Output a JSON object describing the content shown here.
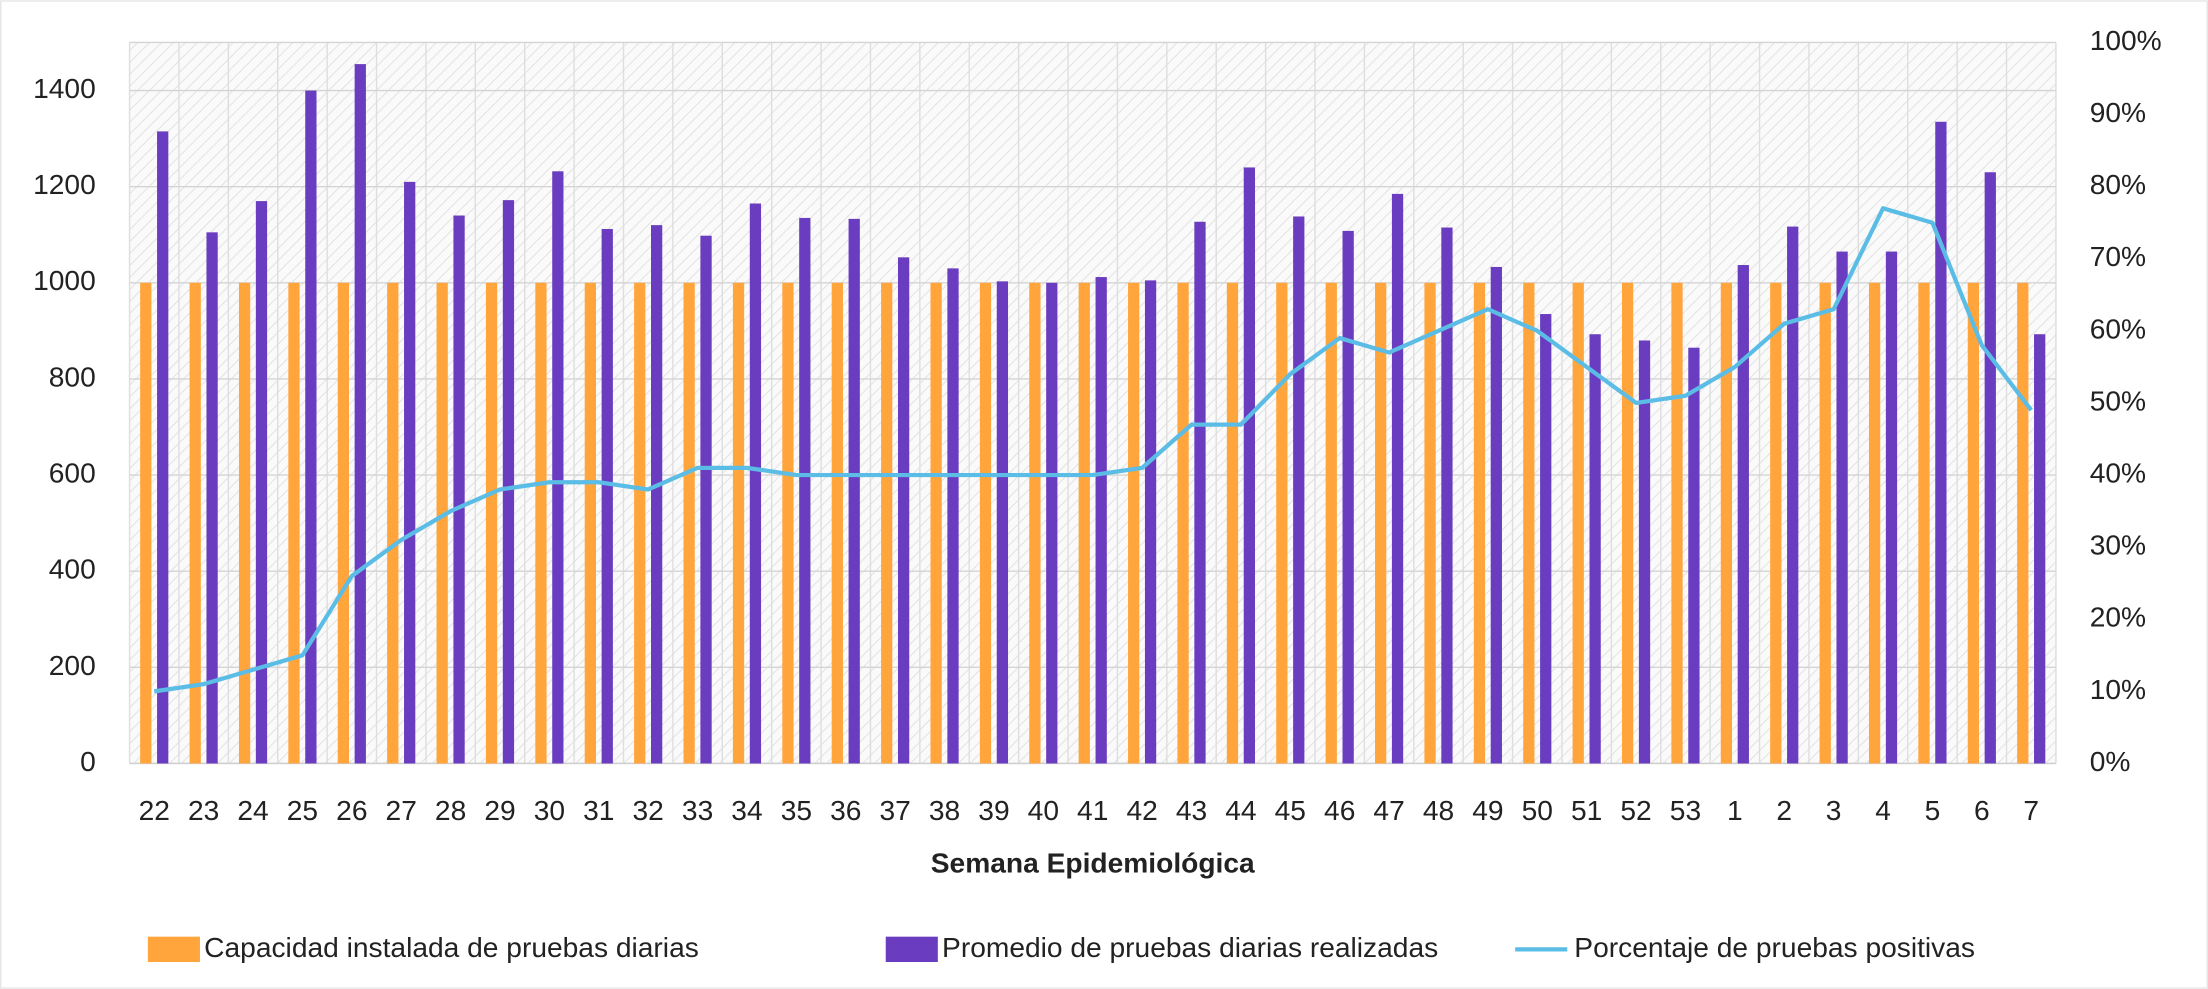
{
  "chart_data": {
    "type": "bar-line",
    "x_label": "Semana Epidemiológica",
    "categories": [
      "22",
      "23",
      "24",
      "25",
      "26",
      "27",
      "28",
      "29",
      "30",
      "31",
      "32",
      "33",
      "34",
      "35",
      "36",
      "37",
      "38",
      "39",
      "40",
      "41",
      "42",
      "43",
      "44",
      "45",
      "46",
      "47",
      "48",
      "49",
      "50",
      "51",
      "52",
      "53",
      "1",
      "2",
      "3",
      "4",
      "5",
      "6",
      "7"
    ],
    "series": [
      {
        "name": "Capacidad instalada de pruebas diarias",
        "type": "bar",
        "color": "#ffa53b",
        "values": [
          1000,
          1000,
          1000,
          1000,
          1000,
          1000,
          1000,
          1000,
          1000,
          1000,
          1000,
          1000,
          1000,
          1000,
          1000,
          1000,
          1000,
          1000,
          1000,
          1000,
          1000,
          1000,
          1000,
          1000,
          1000,
          1000,
          1000,
          1000,
          1000,
          1000,
          1000,
          1000,
          1000,
          1000,
          1000,
          1000,
          1000,
          1000,
          1000
        ]
      },
      {
        "name": "Promedio de pruebas diarias realizadas",
        "type": "bar",
        "color": "#6a3cbf",
        "values": [
          1315,
          1105,
          1170,
          1400,
          1455,
          1210,
          1140,
          1172,
          1232,
          1112,
          1120,
          1098,
          1165,
          1135,
          1133,
          1053,
          1030,
          1003,
          1000,
          1012,
          1005,
          1127,
          1240,
          1138,
          1108,
          1185,
          1115,
          1033,
          935,
          893,
          880,
          865,
          1037,
          1117,
          1065,
          1065,
          1335,
          1230,
          893
        ]
      },
      {
        "name": "Porcentaje de pruebas positivas",
        "type": "line",
        "axis": "y2",
        "color": "#5bbde6",
        "values": [
          10,
          11,
          13,
          15,
          26,
          31,
          35,
          38,
          39,
          39,
          38,
          41,
          41,
          40,
          40,
          40,
          40,
          40,
          40,
          40,
          41,
          47,
          47,
          54,
          59,
          57,
          60,
          63,
          60,
          55,
          50,
          51,
          55,
          61,
          63,
          77,
          75,
          58,
          49
        ]
      }
    ],
    "ylim": [
      0,
      1500
    ],
    "yticks": [
      0,
      200,
      400,
      600,
      800,
      1000,
      1200,
      1400
    ],
    "y2lim": [
      0,
      100
    ],
    "y2ticks": [
      {
        "value": 0,
        "label": "0%"
      },
      {
        "value": 10,
        "label": "10%"
      },
      {
        "value": 20,
        "label": "20%"
      },
      {
        "value": 30,
        "label": "30%"
      },
      {
        "value": 40,
        "label": "40%"
      },
      {
        "value": 50,
        "label": "50%"
      },
      {
        "value": 60,
        "label": "60%"
      },
      {
        "value": 70,
        "label": "70%"
      },
      {
        "value": 80,
        "label": "80%"
      },
      {
        "value": 90,
        "label": "90%"
      },
      {
        "value": 100,
        "label": "100%"
      }
    ],
    "grid": true,
    "legend": "bottom"
  }
}
